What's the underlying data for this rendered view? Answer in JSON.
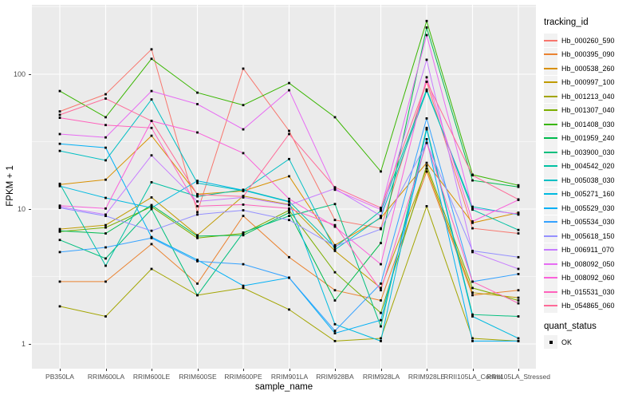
{
  "figure": {
    "background": "#ffffff",
    "panel_background": "#ebebeb",
    "gridline_color": "#ffffff",
    "tick_text_color": "#4d4d4d",
    "axis_title_color": "#000000",
    "marker_color": "#000000",
    "marker_shape": "small-black-square"
  },
  "axes": {
    "y": {
      "title": "FPKM + 1",
      "scale": "log10",
      "ticks": [
        {
          "label": "100",
          "value": 100
        },
        {
          "label": "10",
          "value": 10
        },
        {
          "label": "1",
          "value": 1
        }
      ]
    },
    "x": {
      "title": "sample_name"
    }
  },
  "legend": {
    "color_title": "tracking_id",
    "shape_title": "quant_status",
    "shape_item_label": "OK"
  },
  "chart_data": {
    "type": "line",
    "x_type": "categorical",
    "title": "",
    "xlabel": "sample_name",
    "ylabel": "FPKM + 1",
    "yscale": "log10",
    "ylim": [
      1,
      260
    ],
    "grid": true,
    "legend_position": "right",
    "markers": "black square at every data point (quant_status = OK)",
    "categories": [
      "PB350LA",
      "RRIM600LA",
      "RRIM600LE",
      "RRIM600SE",
      "RRIM600PE",
      "RRIM901LA",
      "RRIM928BA",
      "RRIM928LA",
      "RRIM928LE",
      "RRII105LA_Control",
      "RRII105LA_Stressed"
    ],
    "series": [
      {
        "name": "Hb_000260_590",
        "color": "#F8766D",
        "values": [
          53,
          71,
          153,
          9.5,
          110,
          38,
          8.3,
          7.2,
          88,
          7.2,
          6.6
        ]
      },
      {
        "name": "Hb_000395_090",
        "color": "#EA8331",
        "values": [
          2.9,
          2.9,
          5.5,
          2.8,
          8.9,
          4.4,
          2.5,
          2.1,
          19,
          2.3,
          2.5
        ]
      },
      {
        "name": "Hb_000538_260",
        "color": "#D89000",
        "values": [
          15.2,
          16.5,
          35,
          12.9,
          13.6,
          17.5,
          5.4,
          8.6,
          22,
          7.9,
          9.4
        ]
      },
      {
        "name": "Hb_000997_100",
        "color": "#C09B00",
        "values": [
          7.1,
          7.6,
          12.2,
          6.4,
          12.5,
          10.8,
          4.9,
          2.6,
          20,
          2.4,
          2.2
        ]
      },
      {
        "name": "Hb_001213_040",
        "color": "#A3A500",
        "values": [
          1.9,
          1.6,
          3.6,
          2.3,
          2.6,
          1.8,
          1.05,
          1.1,
          10.5,
          1.1,
          1.05
        ]
      },
      {
        "name": "Hb_001307_040",
        "color": "#7CAE00",
        "values": [
          6.8,
          7.3,
          10.4,
          6.1,
          6.6,
          9.8,
          3.4,
          1.7,
          21,
          2.6,
          2.1
        ]
      },
      {
        "name": "Hb_001408_030",
        "color": "#39B600",
        "values": [
          75,
          48,
          130,
          73,
          59,
          86,
          48,
          19,
          248,
          18,
          15
        ]
      },
      {
        "name": "Hb_001959_240",
        "color": "#00BB4E",
        "values": [
          6.9,
          6.6,
          10.7,
          6.3,
          6.4,
          9.4,
          2.1,
          5.6,
          222,
          16.3,
          14.6
        ]
      },
      {
        "name": "Hb_003900_030",
        "color": "#00BF7D",
        "values": [
          5.9,
          4.3,
          10,
          2.3,
          6.7,
          8.9,
          10.9,
          1.35,
          40,
          1.65,
          1.6
        ]
      },
      {
        "name": "Hb_004542_020",
        "color": "#00C1A3",
        "values": [
          15.4,
          3.8,
          15.8,
          12.4,
          13.9,
          11.4,
          5.2,
          9.7,
          77,
          9.9,
          7.0
        ]
      },
      {
        "name": "Hb_005038_030",
        "color": "#00BFC4",
        "values": [
          27,
          23,
          65,
          15.6,
          13.7,
          23.5,
          5.0,
          8.7,
          75,
          10.4,
          9.1
        ]
      },
      {
        "name": "Hb_005271_160",
        "color": "#00BAE0",
        "values": [
          14.8,
          12.1,
          10.2,
          16.2,
          13.8,
          11.3,
          1.4,
          1.05,
          39,
          1.6,
          1.1
        ]
      },
      {
        "name": "Hb_005529_030",
        "color": "#00B0F6",
        "values": [
          30.5,
          28.5,
          6.2,
          4.2,
          2.7,
          3.1,
          1.2,
          1.5,
          33,
          1.05,
          1.05
        ]
      },
      {
        "name": "Hb_005534_030",
        "color": "#35A2FF",
        "values": [
          4.8,
          5.2,
          6.1,
          4.1,
          3.9,
          3.1,
          1.25,
          2.8,
          47,
          2.9,
          3.3
        ]
      },
      {
        "name": "Hb_005618_150",
        "color": "#9590FF",
        "values": [
          10.2,
          8.9,
          6.9,
          9.1,
          9.8,
          8.3,
          5.3,
          7.1,
          31,
          4.9,
          4.4
        ]
      },
      {
        "name": "Hb_006911_070",
        "color": "#C77CFF",
        "values": [
          10.4,
          9.1,
          25,
          11.4,
          12.2,
          10.7,
          14.2,
          8.9,
          128,
          4.8,
          3.6
        ]
      },
      {
        "name": "Hb_008092_050",
        "color": "#E76BF3",
        "values": [
          36,
          34,
          75,
          60,
          39,
          76,
          13.9,
          9.9,
          195,
          10.1,
          9.2
        ]
      },
      {
        "name": "Hb_008092_060",
        "color": "#FA62DB",
        "values": [
          10.6,
          10.1,
          45,
          37,
          26,
          11.9,
          7.4,
          3.9,
          95,
          8.1,
          11.7
        ]
      },
      {
        "name": "Hb_015531_030",
        "color": "#FF62BC",
        "values": [
          47.5,
          42,
          40,
          10.5,
          10.8,
          10.1,
          7.6,
          2.5,
          31,
          2.9,
          2.0
        ]
      },
      {
        "name": "Hb_054865_060",
        "color": "#FF6A98",
        "values": [
          50,
          66,
          45,
          12.8,
          12.4,
          36,
          14.5,
          10.2,
          88,
          17.8,
          11.8
        ]
      }
    ]
  }
}
